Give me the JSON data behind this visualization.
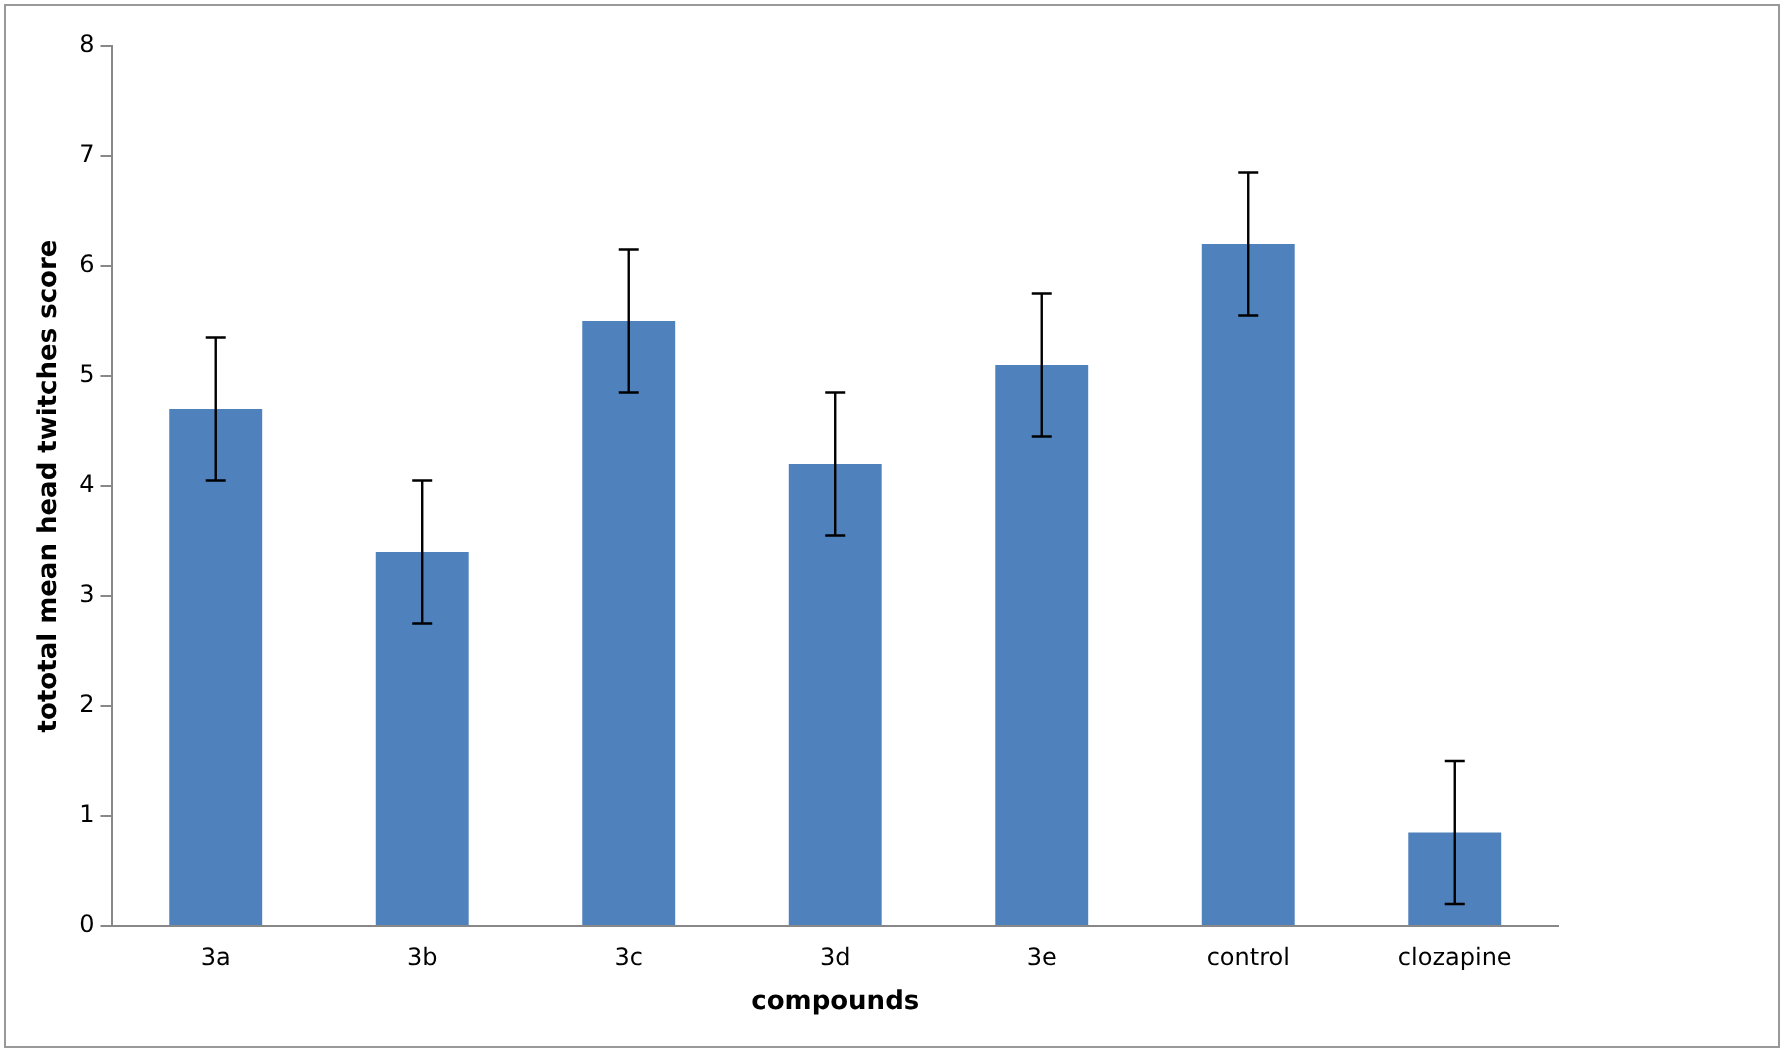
{
  "chart_data": {
    "type": "bar",
    "xlabel": "compounds",
    "ylabel": "tototal mean head twitches score",
    "categories": [
      "3a",
      "3b",
      "3c",
      "3d",
      "3e",
      "control",
      "clozapine"
    ],
    "values": [
      4.7,
      3.4,
      5.5,
      4.2,
      5.1,
      6.2,
      0.85
    ],
    "errors": [
      0.65,
      0.65,
      0.65,
      0.65,
      0.65,
      0.65,
      0.65
    ],
    "color": "#4f81bd",
    "ylim": [
      0,
      8
    ],
    "yticks": [
      0,
      1,
      2,
      3,
      4,
      5,
      6,
      7,
      8
    ],
    "grid": false,
    "legend": false
  }
}
